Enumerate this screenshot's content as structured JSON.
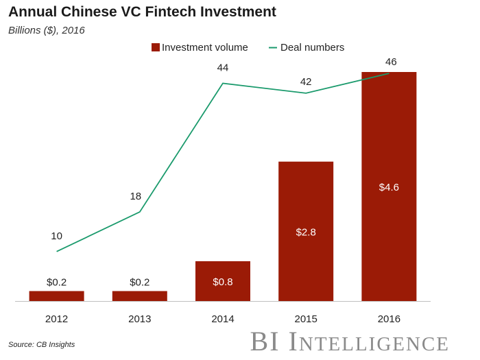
{
  "header": {
    "title": "Annual Chinese VC Fintech Investment",
    "subtitle": "Billions ($), 2016"
  },
  "footer": {
    "source": "Source: CB Insights",
    "brand_bi": "BI",
    "brand_first": "I",
    "brand_rest": "NTELLIGENCE"
  },
  "colors": {
    "bar": "#9b1b06",
    "line": "#1a9a6c",
    "axis": "#bfbfbf"
  },
  "chart_data": {
    "type": "bar",
    "title": "Annual Chinese VC Fintech Investment",
    "subtitle": "Billions ($), 2016",
    "categories": [
      "2012",
      "2013",
      "2014",
      "2015",
      "2016"
    ],
    "series": [
      {
        "name": "Investment volume",
        "kind": "bar",
        "values": [
          0.2,
          0.2,
          0.8,
          2.8,
          4.6
        ],
        "labels": [
          "$0.2",
          "$0.2",
          "$0.8",
          "$2.8",
          "$4.6"
        ]
      },
      {
        "name": "Deal numbers",
        "kind": "line",
        "values": [
          10,
          18,
          44,
          42,
          46
        ],
        "labels": [
          "10",
          "18",
          "44",
          "42",
          "46"
        ]
      }
    ],
    "legend": "top-right",
    "grid": false,
    "ylim_bars": [
      0,
      4.6
    ],
    "ylim_line": [
      0,
      46
    ],
    "source": "Source: CB Insights"
  }
}
